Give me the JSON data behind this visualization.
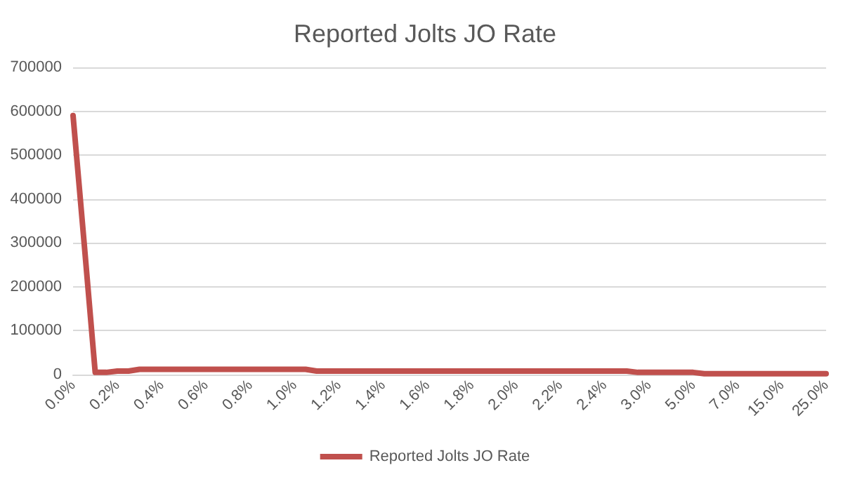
{
  "chart_data": {
    "type": "line",
    "title": "Reported Jolts JO Rate",
    "categories": [
      "0.0%",
      null,
      null,
      null,
      "0.2%",
      null,
      null,
      null,
      "0.4%",
      null,
      null,
      null,
      "0.6%",
      null,
      null,
      null,
      "0.8%",
      null,
      null,
      null,
      "1.0%",
      null,
      null,
      null,
      "1.2%",
      null,
      null,
      null,
      "1.4%",
      null,
      null,
      null,
      "1.6%",
      null,
      null,
      null,
      "1.8%",
      null,
      null,
      null,
      "2.0%",
      null,
      null,
      null,
      "2.2%",
      null,
      null,
      null,
      "2.4%",
      null,
      null,
      null,
      "3.0%",
      null,
      null,
      null,
      "5.0%",
      null,
      null,
      null,
      "7.0%",
      null,
      null,
      null,
      "15.0%",
      null,
      null,
      null,
      "25.0%"
    ],
    "series": [
      {
        "name": "Reported Jolts JO Rate",
        "color": "#c0504d",
        "values": [
          590000,
          300000,
          5000,
          5000,
          8000,
          8000,
          12000,
          12000,
          12000,
          12000,
          12000,
          12000,
          12000,
          12000,
          12000,
          12000,
          12000,
          12000,
          12000,
          12000,
          12000,
          12000,
          8000,
          8000,
          8000,
          8000,
          8000,
          8000,
          8000,
          8000,
          8000,
          8000,
          8000,
          8000,
          8000,
          8000,
          8000,
          8000,
          8000,
          8000,
          8000,
          8000,
          8000,
          8000,
          8000,
          8000,
          8000,
          8000,
          8000,
          8000,
          8000,
          5000,
          5000,
          5000,
          5000,
          5000,
          5000,
          2000,
          2000,
          2000,
          2000,
          2000,
          2000,
          2000,
          2000,
          2000,
          2000,
          2000,
          2000
        ]
      }
    ],
    "ylim": [
      0,
      700000
    ],
    "yticks": [
      0,
      100000,
      200000,
      300000,
      400000,
      500000,
      600000,
      700000
    ],
    "grid": "y",
    "legend": "bottom",
    "marker": "none",
    "line_style": "solid"
  }
}
